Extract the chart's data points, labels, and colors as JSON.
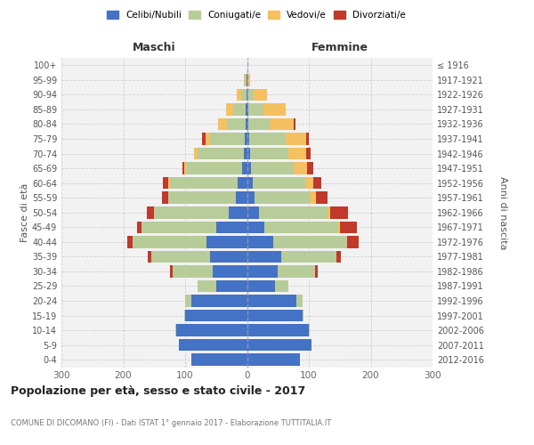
{
  "age_groups": [
    "0-4",
    "5-9",
    "10-14",
    "15-19",
    "20-24",
    "25-29",
    "30-34",
    "35-39",
    "40-44",
    "45-49",
    "50-54",
    "55-59",
    "60-64",
    "65-69",
    "70-74",
    "75-79",
    "80-84",
    "85-89",
    "90-94",
    "95-99",
    "100+"
  ],
  "birth_years": [
    "2012-2016",
    "2007-2011",
    "2002-2006",
    "1997-2001",
    "1992-1996",
    "1987-1991",
    "1982-1986",
    "1977-1981",
    "1972-1976",
    "1967-1971",
    "1962-1966",
    "1957-1961",
    "1952-1956",
    "1947-1951",
    "1942-1946",
    "1937-1941",
    "1932-1936",
    "1927-1931",
    "1922-1926",
    "1917-1921",
    "≤ 1916"
  ],
  "male_celibi": [
    90,
    110,
    115,
    100,
    90,
    50,
    55,
    60,
    65,
    50,
    30,
    18,
    15,
    8,
    5,
    4,
    2,
    2,
    1,
    1,
    0
  ],
  "male_coniugati": [
    0,
    0,
    1,
    2,
    10,
    30,
    65,
    95,
    120,
    120,
    120,
    110,
    110,
    90,
    75,
    55,
    30,
    20,
    8,
    2,
    0
  ],
  "male_vedovi": [
    0,
    0,
    0,
    0,
    0,
    0,
    0,
    0,
    0,
    0,
    0,
    0,
    3,
    3,
    6,
    8,
    15,
    12,
    8,
    2,
    0
  ],
  "male_divorziati": [
    0,
    0,
    0,
    0,
    0,
    0,
    4,
    5,
    8,
    7,
    12,
    10,
    8,
    4,
    0,
    5,
    0,
    0,
    0,
    0,
    0
  ],
  "female_nubili": [
    85,
    105,
    100,
    90,
    80,
    45,
    50,
    55,
    42,
    28,
    20,
    12,
    9,
    7,
    5,
    3,
    2,
    2,
    1,
    0,
    0
  ],
  "female_coniugate": [
    0,
    0,
    1,
    2,
    10,
    22,
    60,
    90,
    120,
    120,
    110,
    90,
    85,
    68,
    62,
    60,
    35,
    25,
    10,
    1,
    0
  ],
  "female_vedove": [
    0,
    0,
    0,
    0,
    0,
    0,
    0,
    0,
    0,
    2,
    5,
    10,
    13,
    22,
    28,
    32,
    38,
    35,
    22,
    4,
    1
  ],
  "female_divorziate": [
    0,
    0,
    0,
    0,
    0,
    0,
    5,
    7,
    18,
    28,
    28,
    18,
    13,
    10,
    8,
    5,
    4,
    0,
    0,
    0,
    0
  ],
  "color_celibi": "#4472c4",
  "color_coniugati": "#b8cc9a",
  "color_vedovi": "#f5c060",
  "color_divorziati": "#c0392b",
  "legend_labels": [
    "Celibi/Nubili",
    "Coniugati/e",
    "Vedovi/e",
    "Divorziati/e"
  ],
  "title": "Popolazione per età, sesso e stato civile - 2017",
  "subtitle": "COMUNE DI DICOMANO (FI) - Dati ISTAT 1° gennaio 2017 - Elaborazione TUTTITALIA.IT",
  "label_maschi": "Maschi",
  "label_femmine": "Femmine",
  "label_fasce": "Fasce di età",
  "label_anni": "Anni di nascita",
  "xlim": 300,
  "xticks": [
    -300,
    -200,
    -100,
    0,
    100,
    200,
    300
  ]
}
